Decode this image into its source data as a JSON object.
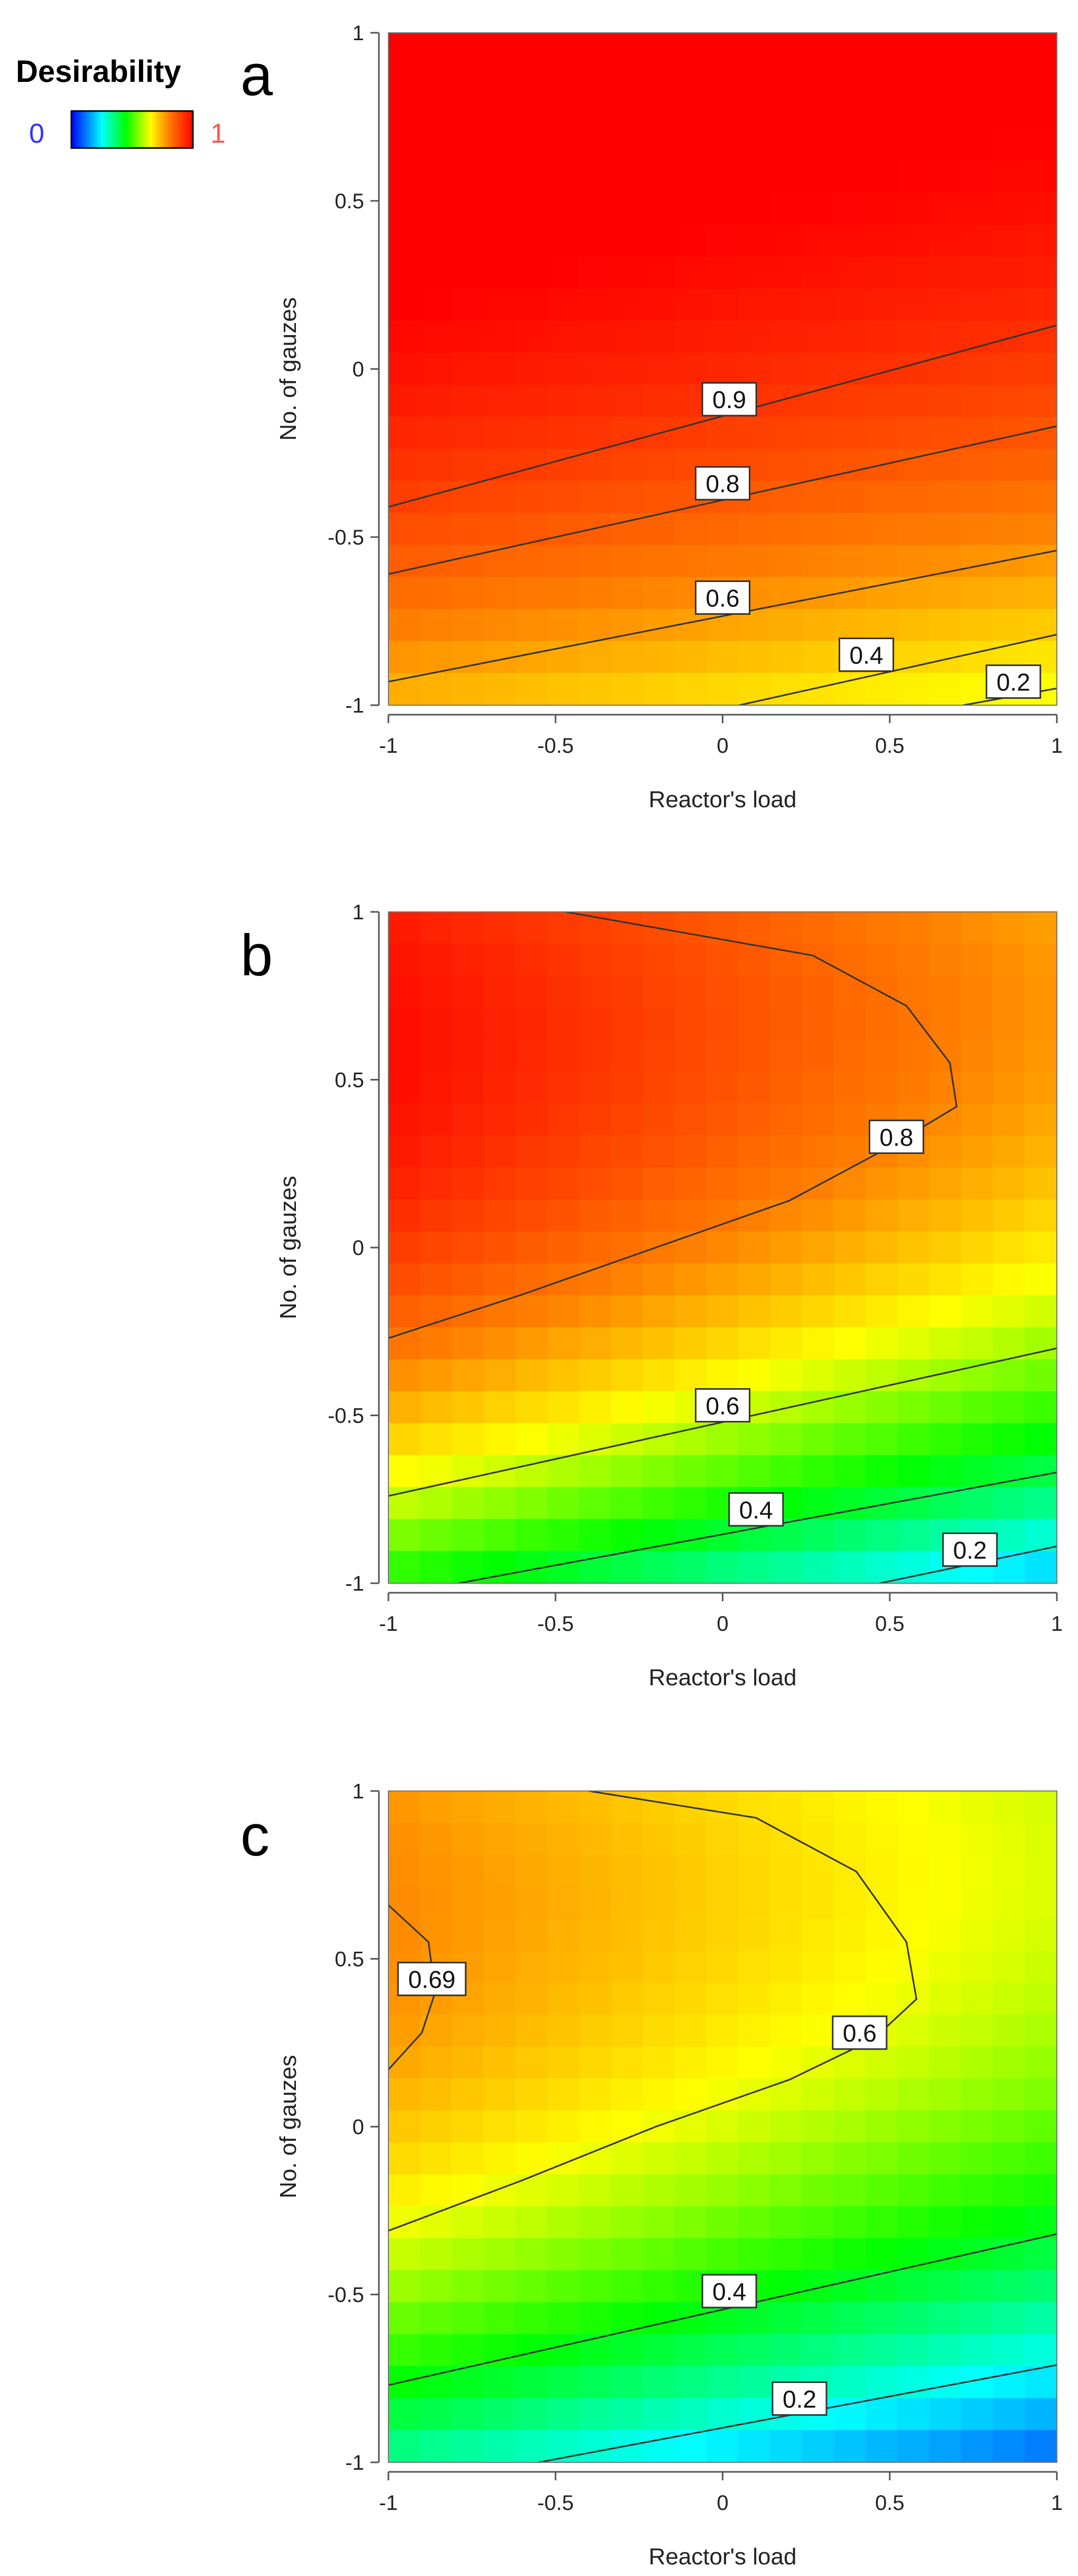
{
  "legend": {
    "title": "Desirability",
    "min_label": "0",
    "max_label": "1",
    "colors": [
      "#0000ff",
      "#00ffff",
      "#00ff00",
      "#ffff00",
      "#ff8000",
      "#ff0000"
    ]
  },
  "chart_data": [
    {
      "type": "contour",
      "panel_label": "a",
      "xlabel": "Reactor's load",
      "ylabel": "No. of gauzes",
      "xlim": [
        -1,
        1
      ],
      "ylim": [
        -1,
        1
      ],
      "xticks": [
        "-1",
        "-0.5",
        "0",
        "0.5",
        "1"
      ],
      "yticks": [
        "-1",
        "-0.5",
        "0",
        "0.5",
        "1"
      ],
      "colorscale": "desirability",
      "levels": [
        {
          "value": "0.9",
          "line": [
            [
              -1,
              -0.41
            ],
            [
              1,
              0.13
            ]
          ],
          "label_at": [
            0.02,
            -0.09
          ]
        },
        {
          "value": "0.8",
          "line": [
            [
              -1,
              -0.61
            ],
            [
              1,
              -0.17
            ]
          ],
          "label_at": [
            0.0,
            -0.34
          ]
        },
        {
          "value": "0.6",
          "line": [
            [
              -1,
              -0.93
            ],
            [
              1,
              -0.54
            ]
          ],
          "label_at": [
            0.0,
            -0.68
          ]
        },
        {
          "value": "0.4",
          "line": [
            [
              0.05,
              -1.0
            ],
            [
              1,
              -0.79
            ]
          ],
          "label_at": [
            0.43,
            -0.85
          ]
        },
        {
          "value": "0.2",
          "line": [
            [
              0.72,
              -1.0
            ],
            [
              1,
              -0.95
            ]
          ],
          "label_at": [
            0.87,
            -0.93
          ]
        }
      ],
      "field": {
        "grid": 21,
        "bilinear": {
          "a": 0.94,
          "b": -0.035,
          "c": 0.175,
          "d": 0.018
        },
        "quad_y": -0.085,
        "floor": 0.0
      }
    },
    {
      "type": "contour",
      "panel_label": "b",
      "xlabel": "Reactor's load",
      "ylabel": "No. of gauzes",
      "xlim": [
        -1,
        1
      ],
      "ylim": [
        -1,
        1
      ],
      "xticks": [
        "-1",
        "-0.5",
        "0",
        "0.5",
        "1"
      ],
      "yticks": [
        "-1",
        "-0.5",
        "0",
        "0.5",
        "1"
      ],
      "colorscale": "desirability",
      "levels": [
        {
          "value": "0.8",
          "line": [
            [
              -1,
              -0.27
            ],
            [
              -0.6,
              -0.14
            ],
            [
              -0.2,
              0.0
            ],
            [
              0.2,
              0.14
            ],
            [
              0.5,
              0.3
            ],
            [
              0.7,
              0.42
            ],
            [
              0.68,
              0.55
            ],
            [
              0.55,
              0.72
            ],
            [
              0.27,
              0.87
            ],
            [
              -0.47,
              1.0
            ]
          ],
          "label_at": [
            0.52,
            0.33
          ]
        },
        {
          "value": "0.6",
          "line": [
            [
              -1,
              -0.74
            ],
            [
              1,
              -0.3
            ]
          ],
          "label_at": [
            0.0,
            -0.47
          ]
        },
        {
          "value": "0.4",
          "line": [
            [
              -0.79,
              -1.0
            ],
            [
              1,
              -0.67
            ]
          ],
          "label_at": [
            0.1,
            -0.78
          ]
        },
        {
          "value": "0.2",
          "line": [
            [
              0.47,
              -1.0
            ],
            [
              1,
              -0.89
            ]
          ],
          "label_at": [
            0.74,
            -0.9
          ]
        }
      ],
      "field": {
        "grid": 21,
        "bilinear": {
          "a": 0.79,
          "b": -0.12,
          "c": 0.265,
          "d": 0.02
        },
        "quad_y": -0.2,
        "floor": 0.0
      }
    },
    {
      "type": "contour",
      "panel_label": "c",
      "xlabel": "Reactor's load",
      "ylabel": "No. of gauzes",
      "xlim": [
        -1,
        1
      ],
      "ylim": [
        -1,
        1
      ],
      "xticks": [
        "-1",
        "-0.5",
        "0",
        "0.5",
        "1"
      ],
      "yticks": [
        "-1",
        "-0.5",
        "0",
        "0.5",
        "1"
      ],
      "colorscale": "desirability",
      "levels": [
        {
          "value": "0.69",
          "line": [
            [
              -1.0,
              0.66
            ],
            [
              -0.88,
              0.55
            ],
            [
              -0.86,
              0.4
            ],
            [
              -0.9,
              0.28
            ],
            [
              -1.0,
              0.17
            ]
          ],
          "label_at": [
            -0.87,
            0.44
          ]
        },
        {
          "value": "0.6",
          "line": [
            [
              -1,
              -0.31
            ],
            [
              -0.6,
              -0.16
            ],
            [
              -0.2,
              0.0
            ],
            [
              0.2,
              0.14
            ],
            [
              0.45,
              0.26
            ],
            [
              0.58,
              0.38
            ],
            [
              0.55,
              0.55
            ],
            [
              0.4,
              0.76
            ],
            [
              0.1,
              0.92
            ],
            [
              -0.4,
              1.0
            ]
          ],
          "label_at": [
            0.41,
            0.28
          ]
        },
        {
          "value": "0.4",
          "line": [
            [
              -1,
              -0.77
            ],
            [
              1,
              -0.32
            ]
          ],
          "label_at": [
            0.02,
            -0.49
          ]
        },
        {
          "value": "0.2",
          "line": [
            [
              -0.55,
              -1.0
            ],
            [
              1,
              -0.71
            ]
          ],
          "label_at": [
            0.23,
            -0.81
          ]
        }
      ],
      "field": {
        "grid": 21,
        "bilinear": {
          "a": 0.62,
          "b": -0.1,
          "c": 0.24,
          "d": 0.02
        },
        "quad_y": -0.17,
        "floor": 0.0
      }
    }
  ]
}
